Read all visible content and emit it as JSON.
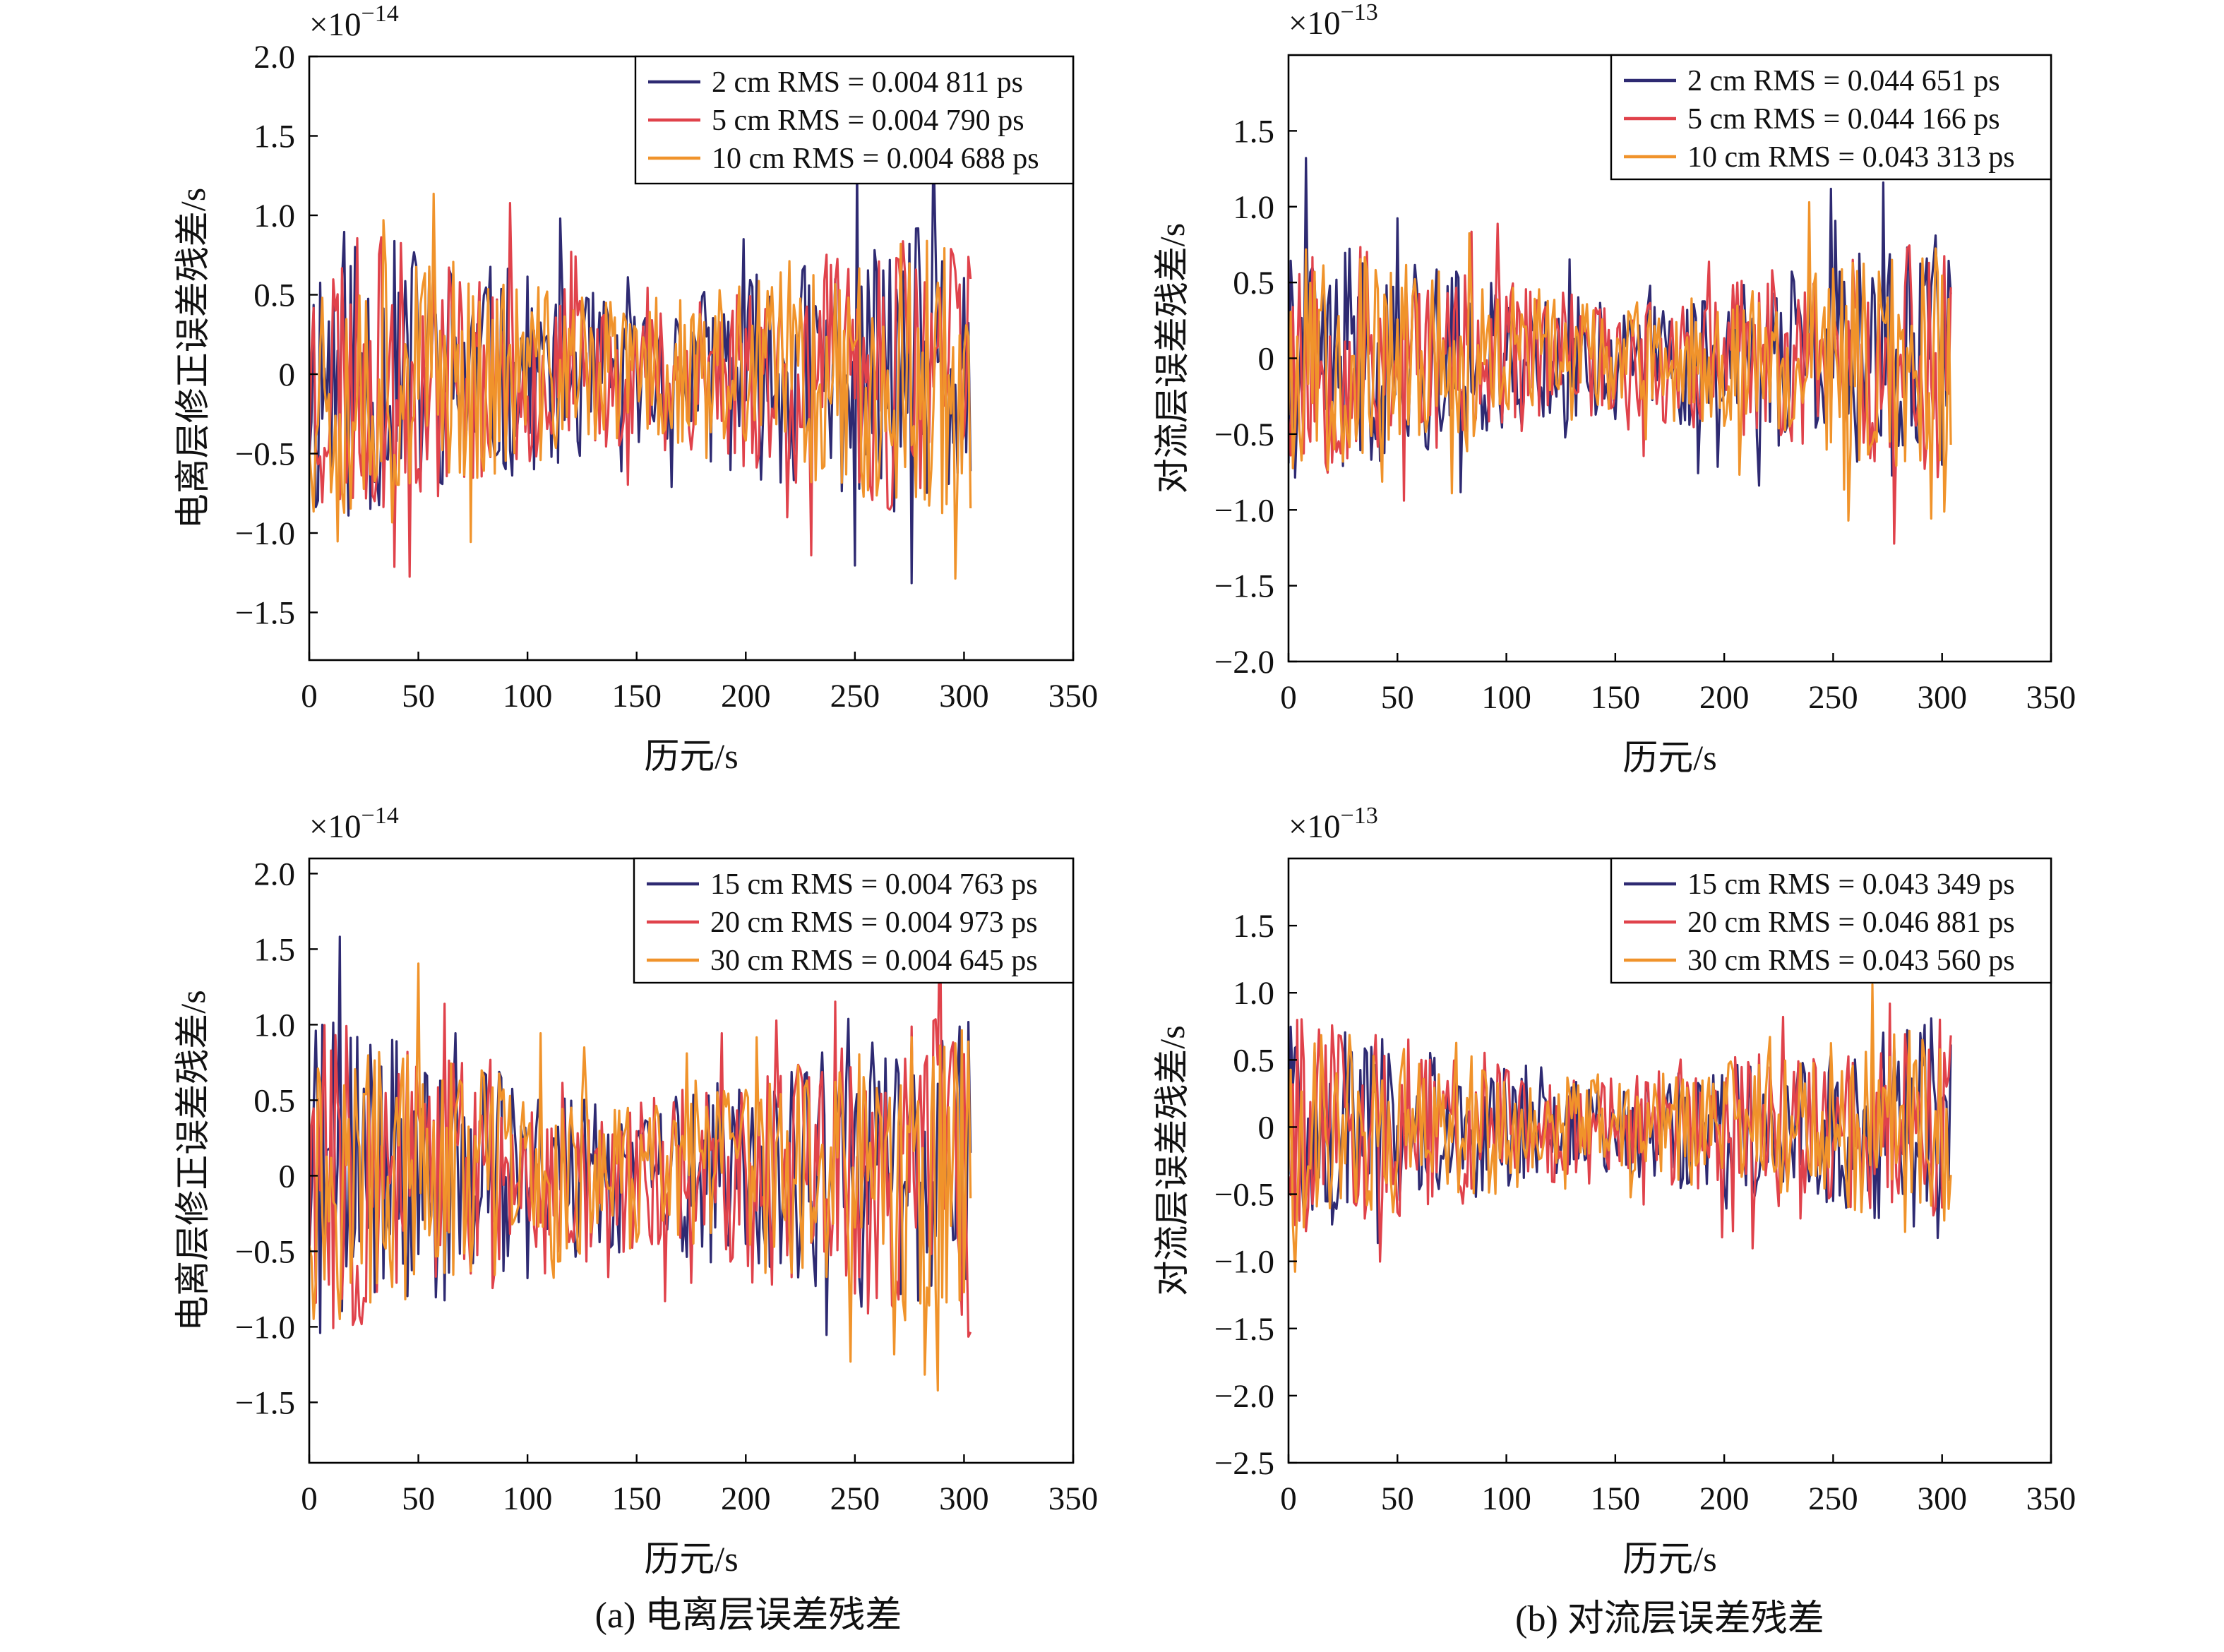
{
  "figure": {
    "captions": [
      "(a) 电离层误差残差",
      "(b) 对流层误差残差"
    ]
  },
  "chart_data": [
    {
      "type": "line",
      "panel": "top-left",
      "xlabel": "历元/s",
      "ylabel": "电离层修正误差残差/s",
      "scale_label": "×10",
      "scale_exp": "−14",
      "xlim": [
        0,
        350
      ],
      "ylim": [
        -1.8,
        2.0
      ],
      "xticks": [
        0,
        50,
        100,
        150,
        200,
        250,
        300,
        350
      ],
      "xtick_labels": [
        "0",
        "50",
        "100",
        "150",
        "200",
        "250",
        "300",
        "350"
      ],
      "yticks": [
        -1.5,
        -1.0,
        -0.5,
        0,
        0.5,
        1.0,
        1.5,
        2.0
      ],
      "ytick_labels": [
        "−1.5",
        "−1.0",
        "−0.5",
        "0",
        "0.5",
        "1.0",
        "1.5",
        "2.0"
      ],
      "grid": false,
      "legend_position": "top-right",
      "series": [
        {
          "name": "2 cm RMS = 0.004 811 ps",
          "color": "#2e2a72",
          "x_range": [
            0,
            303
          ],
          "amp": 0.62,
          "seed": 11
        },
        {
          "name": "5 cm RMS = 0.004 790 ps",
          "color": "#e0424b",
          "x_range": [
            0,
            303
          ],
          "amp": 0.6,
          "seed": 23
        },
        {
          "name": "10 cm RMS = 0.004 688 ps",
          "color": "#f0932b",
          "x_range": [
            0,
            303
          ],
          "amp": 0.58,
          "seed": 37
        }
      ]
    },
    {
      "type": "line",
      "panel": "top-right",
      "xlabel": "历元/s",
      "ylabel": "对流层误差残差/s",
      "scale_label": "×10",
      "scale_exp": "−13",
      "xlim": [
        0,
        350
      ],
      "ylim": [
        -2.0,
        2.0
      ],
      "xticks": [
        0,
        50,
        100,
        150,
        200,
        250,
        300,
        350
      ],
      "xtick_labels": [
        "0",
        "50",
        "100",
        "150",
        "200",
        "250",
        "300",
        "350"
      ],
      "yticks": [
        -2.0,
        -1.5,
        -1.0,
        -0.5,
        0,
        0.5,
        1.0,
        1.5
      ],
      "ytick_labels": [
        "−2.0",
        "−1.5",
        "−1.0",
        "−0.5",
        "0",
        "0.5",
        "1.0",
        "1.5"
      ],
      "grid": false,
      "legend_position": "top-right",
      "series": [
        {
          "name": "2 cm RMS = 0.044 651 ps",
          "color": "#2e2a72",
          "x_range": [
            0,
            304
          ],
          "amp": 0.5,
          "seed": 41
        },
        {
          "name": "5 cm RMS = 0.044 166 ps",
          "color": "#e0424b",
          "x_range": [
            0,
            304
          ],
          "amp": 0.5,
          "seed": 53
        },
        {
          "name": "10 cm RMS = 0.043 313 ps",
          "color": "#f0932b",
          "x_range": [
            0,
            304
          ],
          "amp": 0.48,
          "seed": 67
        }
      ]
    },
    {
      "type": "line",
      "panel": "bottom-left",
      "xlabel": "历元/s",
      "ylabel": "电离层修正误差残差/s",
      "scale_label": "×10",
      "scale_exp": "−14",
      "xlim": [
        0,
        350
      ],
      "ylim": [
        -1.9,
        2.1
      ],
      "xticks": [
        0,
        50,
        100,
        150,
        200,
        250,
        300,
        350
      ],
      "xtick_labels": [
        "0",
        "50",
        "100",
        "150",
        "200",
        "250",
        "300",
        "350"
      ],
      "yticks": [
        -1.5,
        -1.0,
        -0.5,
        0,
        0.5,
        1.0,
        1.5,
        2.0
      ],
      "ytick_labels": [
        "−1.5",
        "−1.0",
        "−0.5",
        "0",
        "0.5",
        "1.0",
        "1.5",
        "2.0"
      ],
      "grid": false,
      "legend_position": "top-right",
      "series": [
        {
          "name": "15 cm RMS = 0.004 763 ps",
          "color": "#2e2a72",
          "x_range": [
            0,
            303
          ],
          "amp": 0.66,
          "seed": 71
        },
        {
          "name": "20 cm RMS = 0.004 973 ps",
          "color": "#e0424b",
          "x_range": [
            0,
            303
          ],
          "amp": 0.68,
          "seed": 83
        },
        {
          "name": "30 cm RMS = 0.004 645 ps",
          "color": "#f0932b",
          "x_range": [
            0,
            303
          ],
          "amp": 0.62,
          "seed": 97
        }
      ]
    },
    {
      "type": "line",
      "panel": "bottom-right",
      "xlabel": "历元/s",
      "ylabel": "对流层误差残差/s",
      "scale_label": "×10",
      "scale_exp": "−13",
      "xlim": [
        0,
        350
      ],
      "ylim": [
        -2.5,
        2.0
      ],
      "xticks": [
        0,
        50,
        100,
        150,
        200,
        250,
        300,
        350
      ],
      "xtick_labels": [
        "0",
        "50",
        "100",
        "150",
        "200",
        "250",
        "300",
        "350"
      ],
      "yticks": [
        -2.5,
        -2.0,
        -1.5,
        -1.0,
        -0.5,
        0,
        0.5,
        1.0,
        1.5
      ],
      "ytick_labels": [
        "−2.5",
        "−2.0",
        "−1.5",
        "−1.0",
        "−0.5",
        "0",
        "0.5",
        "1.0",
        "1.5"
      ],
      "grid": false,
      "legend_position": "top-right",
      "series": [
        {
          "name": "15 cm RMS = 0.043 349 ps",
          "color": "#2e2a72",
          "x_range": [
            0,
            304
          ],
          "amp": 0.48,
          "seed": 101
        },
        {
          "name": "20 cm RMS = 0.046 881 ps",
          "color": "#e0424b",
          "x_range": [
            0,
            304
          ],
          "amp": 0.5,
          "seed": 113
        },
        {
          "name": "30 cm RMS = 0.043 560 ps",
          "color": "#f0932b",
          "x_range": [
            0,
            304
          ],
          "amp": 0.47,
          "seed": 127
        }
      ]
    }
  ]
}
